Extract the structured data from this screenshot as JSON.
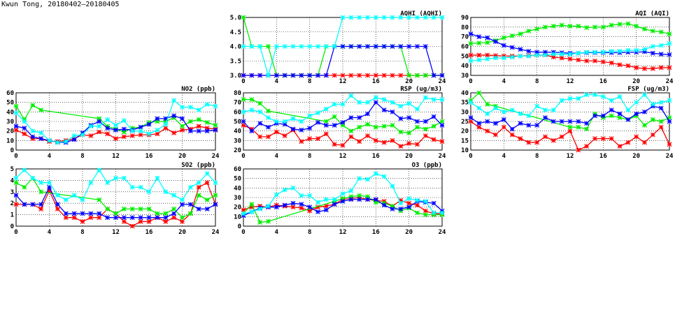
{
  "page_title": "Kwun Tong, 20180402–20180405",
  "colors": {
    "red": "#ff0000",
    "green": "#00ee00",
    "blue": "#0000ff",
    "cyan": "#00ffff"
  },
  "chart_data": [
    {
      "type": "line",
      "title": "AQHI (AQHI)",
      "x": [
        0,
        1,
        2,
        3,
        4,
        5,
        6,
        7,
        8,
        9,
        10,
        11,
        12,
        13,
        14,
        15,
        16,
        17,
        18,
        19,
        20,
        21,
        22,
        23,
        24
      ],
      "xticks": [
        0,
        4,
        8,
        12,
        16,
        20,
        24
      ],
      "ylim": [
        3,
        5
      ],
      "yticks": [
        3.0,
        3.5,
        4.0,
        4.5,
        5.0
      ],
      "ydec": 1,
      "series": [
        {
          "color": "red",
          "values": [
            3,
            3,
            3,
            3,
            3,
            3,
            3,
            3,
            3,
            3,
            3,
            3,
            3,
            3,
            3,
            3,
            3,
            3,
            3,
            3,
            3,
            3,
            3,
            3,
            3
          ]
        },
        {
          "color": "green",
          "values": [
            5,
            4,
            4,
            4,
            3,
            3,
            3,
            3,
            3,
            3,
            4,
            4,
            4,
            4,
            4,
            4,
            4,
            4,
            4,
            4,
            3,
            3,
            3,
            3,
            3
          ]
        },
        {
          "color": "blue",
          "values": [
            3,
            3,
            3,
            3,
            3,
            3,
            3,
            3,
            3,
            3,
            3,
            4,
            4,
            4,
            4,
            4,
            4,
            4,
            4,
            4,
            4,
            4,
            4,
            3,
            3
          ]
        },
        {
          "color": "cyan",
          "values": [
            4,
            4,
            4,
            3,
            4,
            4,
            4,
            4,
            4,
            4,
            4,
            4,
            5,
            5,
            5,
            5,
            5,
            5,
            5,
            5,
            5,
            5,
            5,
            5,
            5
          ]
        }
      ]
    },
    {
      "type": "line",
      "title": "AQI (AQI)",
      "x": [
        0,
        1,
        2,
        3,
        4,
        5,
        6,
        7,
        8,
        9,
        10,
        11,
        12,
        13,
        14,
        15,
        16,
        17,
        18,
        19,
        20,
        21,
        22,
        23,
        24
      ],
      "xticks": [
        0,
        4,
        8,
        12,
        16,
        20,
        24
      ],
      "ylim": [
        30,
        90
      ],
      "yticks": [
        30,
        40,
        50,
        60,
        70,
        80,
        90
      ],
      "ydec": 0,
      "series": [
        {
          "color": "red",
          "values": [
            51,
            51,
            51,
            50.5,
            50,
            50,
            50,
            50.5,
            51,
            51,
            49,
            48,
            47,
            46,
            45,
            45,
            44,
            43,
            41,
            40,
            38,
            37,
            37,
            38,
            38
          ]
        },
        {
          "color": "green",
          "values": [
            63,
            63.5,
            64,
            66,
            69,
            71,
            73,
            76,
            78,
            80,
            81,
            82,
            81,
            81,
            79.5,
            80,
            80,
            82,
            83,
            83.5,
            81,
            78,
            76,
            75,
            73
          ]
        },
        {
          "color": "blue",
          "values": [
            73,
            70,
            69,
            65,
            61,
            59,
            57,
            55,
            54,
            54,
            54,
            53.5,
            53,
            53,
            53.5,
            53.5,
            53.5,
            53.5,
            53.5,
            54,
            54,
            54.5,
            53,
            52,
            51.5
          ]
        },
        {
          "color": "cyan",
          "values": [
            45,
            46,
            47,
            48,
            48,
            49,
            50,
            50,
            51,
            51,
            52,
            52,
            52,
            53,
            54,
            54,
            54,
            55,
            55,
            56,
            56,
            57,
            60,
            61,
            63
          ]
        }
      ]
    },
    {
      "type": "line",
      "title": "NO2 (ppb)",
      "x": [
        0,
        1,
        2,
        3,
        4,
        5,
        6,
        7,
        8,
        9,
        10,
        11,
        12,
        13,
        14,
        15,
        16,
        17,
        18,
        19,
        20,
        21,
        22,
        23,
        24
      ],
      "xticks": [
        0,
        4,
        8,
        12,
        16,
        20,
        24
      ],
      "ylim": [
        0,
        60
      ],
      "yticks": [
        0,
        10,
        20,
        30,
        40,
        50,
        60
      ],
      "ydec": 0,
      "series": [
        {
          "color": "red",
          "values": [
            21,
            17,
            12,
            12,
            9,
            9,
            10,
            12,
            16,
            15,
            19,
            17,
            12,
            14,
            15,
            16,
            16,
            17,
            23,
            18,
            21,
            22,
            25,
            23,
            22
          ]
        },
        {
          "color": "green",
          "values": [
            46,
            32,
            47,
            42,
            null,
            null,
            null,
            null,
            null,
            null,
            33,
            25,
            22,
            19,
            23,
            24,
            29,
            30,
            30,
            34,
            25,
            30,
            32,
            29,
            26
          ]
        },
        {
          "color": "blue",
          "values": [
            25,
            23,
            14,
            12,
            10,
            8,
            8,
            11,
            18,
            26,
            30,
            23,
            21,
            22,
            21,
            24,
            27,
            33,
            33,
            36,
            33,
            20,
            20,
            20,
            21
          ]
        },
        {
          "color": "cyan",
          "values": [
            39,
            30,
            20,
            18,
            10,
            8,
            9,
            15,
            16,
            25,
            25,
            32,
            26,
            31,
            20,
            20,
            17,
            21,
            27,
            52,
            45,
            45,
            42,
            48,
            46
          ]
        }
      ]
    },
    {
      "type": "line",
      "title": "RSP (ug/m3)",
      "x": [
        0,
        1,
        2,
        3,
        4,
        5,
        6,
        7,
        8,
        9,
        10,
        11,
        12,
        13,
        14,
        15,
        16,
        17,
        18,
        19,
        20,
        21,
        22,
        23,
        24
      ],
      "xticks": [
        0,
        4,
        8,
        12,
        16,
        20,
        24
      ],
      "ylim": [
        20,
        80
      ],
      "yticks": [
        20,
        30,
        40,
        50,
        60,
        70,
        80
      ],
      "ydec": 0,
      "series": [
        {
          "color": "red",
          "values": [
            46,
            42,
            34,
            34,
            39,
            35,
            41,
            29,
            32,
            32,
            37,
            26,
            25,
            34,
            29,
            35,
            30,
            28,
            30,
            24,
            27,
            26,
            35,
            31,
            29
          ]
        },
        {
          "color": "green",
          "values": [
            73,
            73,
            69,
            61,
            null,
            null,
            null,
            null,
            null,
            null,
            50,
            55,
            46,
            40,
            44,
            47,
            44,
            45,
            46,
            39,
            38,
            44,
            42,
            45,
            50
          ]
        },
        {
          "color": "blue",
          "values": [
            50,
            40,
            48,
            44,
            48,
            47,
            42,
            41,
            43,
            49,
            46,
            46,
            49,
            54,
            54,
            58,
            70,
            62,
            60,
            53,
            54,
            50,
            50,
            55,
            46
          ]
        },
        {
          "color": "cyan",
          "values": [
            60,
            62,
            60,
            54,
            50,
            50,
            53,
            50,
            56,
            59,
            63,
            68,
            68,
            77,
            70,
            70,
            75,
            73,
            70,
            66,
            69,
            63,
            75,
            73,
            73
          ]
        }
      ]
    },
    {
      "type": "line",
      "title": "FSP (ug/m3)",
      "x": [
        0,
        1,
        2,
        3,
        4,
        5,
        6,
        7,
        8,
        9,
        10,
        11,
        12,
        13,
        14,
        15,
        16,
        17,
        18,
        19,
        20,
        21,
        22,
        23,
        24
      ],
      "xticks": [
        0,
        4,
        8,
        12,
        16,
        20,
        24
      ],
      "ylim": [
        10,
        40
      ],
      "yticks": [
        10,
        15,
        20,
        25,
        30,
        35,
        40
      ],
      "ydec": 0,
      "series": [
        {
          "color": "red",
          "values": [
            25,
            22,
            20,
            18,
            22,
            18,
            16,
            14,
            14,
            17,
            15,
            17,
            20,
            10,
            12,
            16,
            16,
            16,
            12,
            14,
            17,
            14,
            18,
            22,
            13
          ]
        },
        {
          "color": "green",
          "values": [
            36,
            40,
            34,
            33,
            null,
            null,
            null,
            null,
            null,
            null,
            null,
            null,
            22,
            22,
            21,
            29,
            27,
            28,
            27,
            26,
            28,
            23,
            26,
            25,
            27
          ]
        },
        {
          "color": "blue",
          "values": [
            27,
            24,
            25,
            24,
            26,
            21,
            24,
            23,
            23,
            27,
            25,
            25,
            25,
            25,
            24,
            28,
            28,
            31,
            29,
            26,
            29,
            30,
            33,
            32,
            25
          ]
        },
        {
          "color": "cyan",
          "values": [
            35,
            32,
            29,
            32,
            30,
            31,
            29,
            28,
            33,
            31,
            31,
            36,
            37,
            37,
            39,
            39,
            38,
            36,
            38,
            31,
            35,
            39,
            34,
            35,
            36
          ]
        }
      ]
    },
    {
      "type": "line",
      "title": "SO2 (ppb)",
      "x": [
        0,
        1,
        2,
        3,
        4,
        5,
        6,
        7,
        8,
        9,
        10,
        11,
        12,
        13,
        14,
        15,
        16,
        17,
        18,
        19,
        20,
        21,
        22,
        23,
        24
      ],
      "xticks": [
        0,
        4,
        8,
        12,
        16,
        20,
        24
      ],
      "ylim": [
        0,
        5
      ],
      "yticks": [
        0,
        1,
        2,
        3,
        4,
        5
      ],
      "ydec": 0,
      "series": [
        {
          "color": "red",
          "values": [
            1.9,
            1.9,
            1.9,
            1.5,
            3.1,
            1.5,
            0.75,
            0.75,
            0.4,
            0.75,
            0.75,
            1.5,
            1.1,
            0.4,
            0,
            0.4,
            0.4,
            0.75,
            0.4,
            0.75,
            0.4,
            1.1,
            3.4,
            3.8,
            1.9
          ]
        },
        {
          "color": "green",
          "values": [
            3.8,
            3.4,
            4.2,
            3.0,
            null,
            null,
            null,
            null,
            null,
            null,
            2.3,
            1.5,
            1.1,
            1.5,
            1.5,
            1.5,
            1.5,
            1.1,
            1.1,
            1.5,
            0.75,
            1.1,
            2.7,
            2.3,
            2.7
          ]
        },
        {
          "color": "blue",
          "values": [
            2.7,
            1.9,
            1.9,
            1.9,
            3.4,
            1.9,
            1.1,
            1.1,
            1.1,
            1.1,
            1.1,
            0.75,
            0.75,
            0.75,
            0.75,
            0.75,
            0.75,
            0.75,
            0.75,
            1.1,
            1.9,
            1.9,
            1.5,
            1.5,
            1.9
          ]
        },
        {
          "color": "cyan",
          "values": [
            4.2,
            4.9,
            4.2,
            3.8,
            3.8,
            2.7,
            2.3,
            2.7,
            2.3,
            3.8,
            4.9,
            3.8,
            4.2,
            4.2,
            3.4,
            3.4,
            3.0,
            4.2,
            3.0,
            2.7,
            2.3,
            3.4,
            3.8,
            4.6,
            3.8
          ]
        }
      ]
    },
    {
      "type": "line",
      "title": "O3 (ppb)",
      "x": [
        0,
        1,
        2,
        3,
        4,
        5,
        6,
        7,
        8,
        9,
        10,
        11,
        12,
        13,
        14,
        15,
        16,
        17,
        18,
        19,
        20,
        21,
        22,
        23,
        24
      ],
      "xticks": [
        0,
        4,
        8,
        12,
        16,
        20,
        24
      ],
      "ylim": [
        0,
        60
      ],
      "yticks": [
        0,
        10,
        20,
        30,
        40,
        50,
        60
      ],
      "ydec": 0,
      "series": [
        {
          "color": "red",
          "values": [
            17,
            20,
            21,
            20,
            22,
            21,
            20,
            19,
            16,
            20,
            21,
            23,
            28,
            29,
            30,
            28,
            27,
            26,
            21,
            27,
            24,
            22,
            16,
            13,
            13
          ]
        },
        {
          "color": "green",
          "values": [
            13,
            23,
            4,
            5,
            null,
            null,
            null,
            null,
            null,
            null,
            null,
            26,
            29,
            31,
            32,
            31,
            25,
            24,
            21,
            16,
            19,
            14,
            12,
            12,
            12
          ]
        },
        {
          "color": "blue",
          "values": [
            11,
            15,
            19,
            20,
            20,
            22,
            24,
            23,
            20,
            15,
            17,
            23,
            26,
            28,
            28,
            28,
            28,
            22,
            18,
            18,
            20,
            26,
            25,
            24,
            16
          ]
        },
        {
          "color": "cyan",
          "values": [
            13,
            15,
            18,
            21,
            33,
            38,
            40,
            32,
            32,
            25,
            28,
            28,
            34,
            37,
            50,
            49,
            55,
            52,
            42,
            24,
            29,
            27,
            26,
            14,
            14
          ]
        }
      ]
    }
  ]
}
